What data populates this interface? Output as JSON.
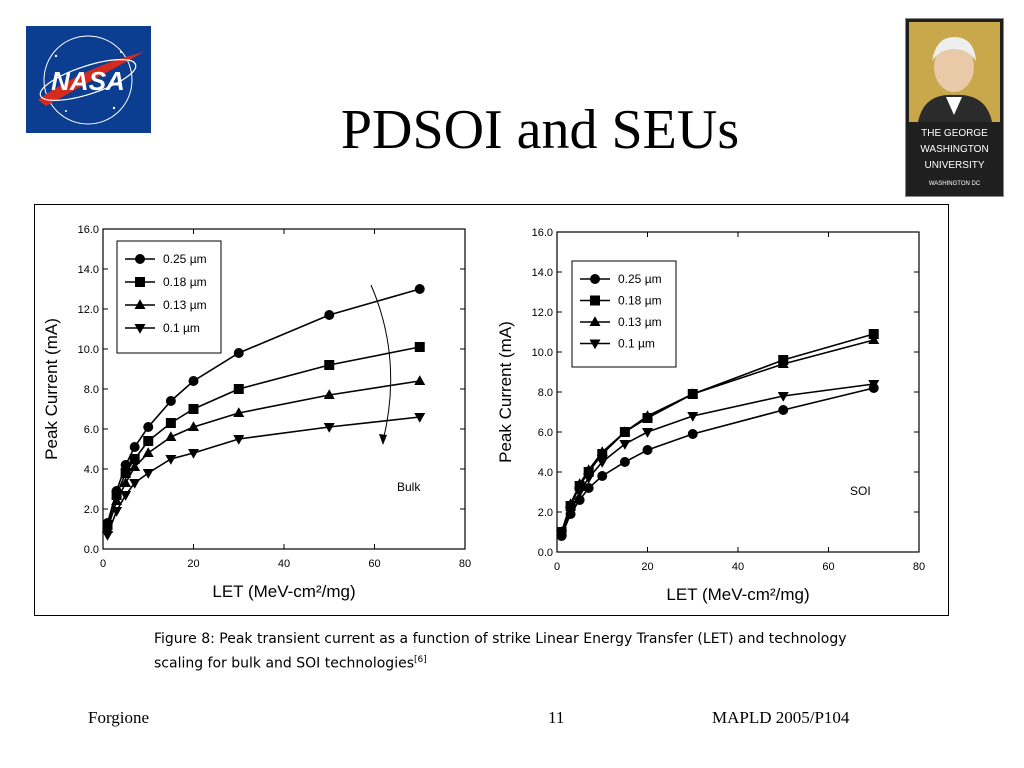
{
  "slide": {
    "title": "PDSOI and SEUs",
    "caption_text": "Figure 8:  Peak transient current as a function of strike Linear Energy Transfer (LET) and technology scaling for bulk and SOI technologies",
    "caption_ref": "[6]",
    "footer_left": "Forgione",
    "footer_center": "11",
    "footer_right": "MAPLD 2005/P104"
  },
  "logos": {
    "nasa_text": "NASA",
    "gwu_lines": [
      "THE GEORGE",
      "WASHINGTON",
      "UNIVERSITY",
      "WASHINGTON DC"
    ]
  },
  "colors": {
    "nasa_blue": "#0b3d91",
    "nasa_red": "#d52b1e",
    "gwu_gold": "#c8a84a"
  },
  "chart_data": [
    {
      "type": "line",
      "annotation": "Bulk",
      "xlabel": "LET (MeV-cm²/mg)",
      "ylabel": "Peak Current (mA)",
      "xlim": [
        0,
        80
      ],
      "ylim": [
        0,
        16
      ],
      "xticks": [
        0,
        20,
        40,
        60,
        80
      ],
      "yticks": [
        0.0,
        2.0,
        4.0,
        6.0,
        8.0,
        10.0,
        12.0,
        14.0,
        16.0
      ],
      "x": [
        1,
        3,
        5,
        7,
        10,
        15,
        20,
        30,
        50,
        70
      ],
      "legend_position": "top-left",
      "grid": false,
      "series": [
        {
          "name": "0.25 µm",
          "marker": "circle",
          "values": [
            1.3,
            2.9,
            4.2,
            5.1,
            6.1,
            7.4,
            8.4,
            9.8,
            11.7,
            13.0
          ]
        },
        {
          "name": "0.18 µm",
          "marker": "square",
          "values": [
            1.2,
            2.7,
            3.8,
            4.5,
            5.4,
            6.3,
            7.0,
            8.0,
            9.2,
            10.1
          ]
        },
        {
          "name": "0.13 µm",
          "marker": "triangle-up",
          "values": [
            1.0,
            2.4,
            3.3,
            4.1,
            4.8,
            5.6,
            6.1,
            6.8,
            7.7,
            8.4
          ]
        },
        {
          "name": "0.1 µm",
          "marker": "triangle-down",
          "values": [
            0.7,
            1.9,
            2.7,
            3.3,
            3.8,
            4.5,
            4.8,
            5.5,
            6.1,
            6.6
          ]
        }
      ]
    },
    {
      "type": "line",
      "annotation": "SOI",
      "xlabel": "LET (MeV-cm²/mg)",
      "ylabel": "Peak Current (mA)",
      "xlim": [
        0,
        80
      ],
      "ylim": [
        0,
        16
      ],
      "xticks": [
        0,
        20,
        40,
        60,
        80
      ],
      "yticks": [
        0.0,
        2.0,
        4.0,
        6.0,
        8.0,
        10.0,
        12.0,
        14.0,
        16.0
      ],
      "x": [
        1,
        3,
        5,
        7,
        10,
        15,
        20,
        30,
        50,
        70
      ],
      "legend_position": "top-left",
      "grid": false,
      "series": [
        {
          "name": "0.25 µm",
          "marker": "circle",
          "values": [
            0.8,
            1.9,
            2.6,
            3.2,
            3.8,
            4.5,
            5.1,
            5.9,
            7.1,
            8.2
          ]
        },
        {
          "name": "0.18 µm",
          "marker": "square",
          "values": [
            1.0,
            2.3,
            3.3,
            4.0,
            4.9,
            6.0,
            6.7,
            7.9,
            9.6,
            10.9
          ]
        },
        {
          "name": "0.13 µm",
          "marker": "triangle-up",
          "values": [
            1.0,
            2.4,
            3.4,
            4.1,
            5.0,
            6.0,
            6.8,
            7.9,
            9.4,
            10.6
          ]
        },
        {
          "name": "0.1 µm",
          "marker": "triangle-down",
          "values": [
            0.9,
            2.1,
            3.0,
            3.7,
            4.5,
            5.4,
            6.0,
            6.8,
            7.8,
            8.4
          ]
        }
      ]
    }
  ]
}
